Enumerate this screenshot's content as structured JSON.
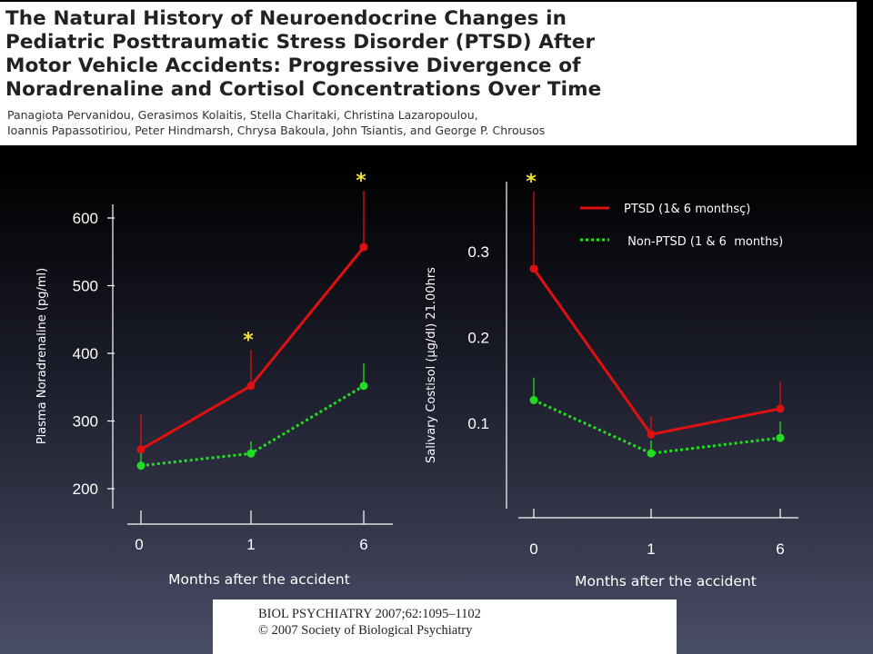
{
  "header": {
    "title_lines": [
      "The Natural History of Neuroendocrine Changes in",
      "Pediatric Posttraumatic Stress Disorder (PTSD) After",
      "Motor Vehicle Accidents: Progressive Divergence of",
      "Noradrenaline and Cortisol Concentrations Over Time"
    ],
    "author_lines": [
      "Panagiota Pervanidou, Gerasimos Kolaitis, Stella Charitaki, Christina Lazaropoulou,",
      "Ioannis Papassotiriou, Peter Hindmarsh, Chrysa Bakoula, John Tsiantis, and George P. Chrousos"
    ]
  },
  "citation": {
    "line1": "BIOL PSYCHIATRY 2007;62:1095–1102",
    "line2": "© 2007 Society of Biological Psychiatry"
  },
  "colors": {
    "ptsd": "#e01010",
    "non_ptsd": "#22dd22",
    "star": "#f4e23a"
  },
  "chart_data": [
    {
      "type": "line",
      "xlabel": "Months after the accident",
      "ylabel": "Plasma Noradrenaline  (pg/ml)",
      "categories": [
        "0",
        "1",
        "6"
      ],
      "yticks": [
        200,
        300,
        400,
        500,
        600
      ],
      "series": [
        {
          "key": "ptsd",
          "values": [
            258,
            352,
            557
          ],
          "error_upper": [
            310,
            405,
            640
          ],
          "style": "solid"
        },
        {
          "key": "non_ptsd",
          "values": [
            234,
            252,
            352
          ],
          "error_upper": [
            262,
            270,
            385
          ],
          "style": "dotted"
        }
      ],
      "significance_markers": [
        {
          "category": "1",
          "label": "*"
        },
        {
          "category": "6",
          "label": "*"
        }
      ]
    },
    {
      "type": "line",
      "xlabel": "Months after the accident",
      "ylabel": "Salivary Costisol  (µg/dl) 21.00hrs",
      "categories": [
        "0",
        "1",
        "6"
      ],
      "yticks": [
        "0.1",
        "0.2",
        "0.3"
      ],
      "series": [
        {
          "key": "ptsd",
          "name": "PTSD (1& 6 monthsç)",
          "values": [
            0.28,
            0.087,
            0.117
          ],
          "error_upper": [
            0.37,
            0.108,
            0.148
          ],
          "style": "solid"
        },
        {
          "key": "non_ptsd",
          "name": " Non-PTSD (1 & 6  months)",
          "values": [
            0.127,
            0.065,
            0.083
          ],
          "error_upper": [
            0.153,
            0.08,
            0.102
          ],
          "style": "dotted"
        }
      ],
      "legend_position": "top-right",
      "significance_markers": [
        {
          "category": "0",
          "label": "*"
        }
      ]
    }
  ]
}
